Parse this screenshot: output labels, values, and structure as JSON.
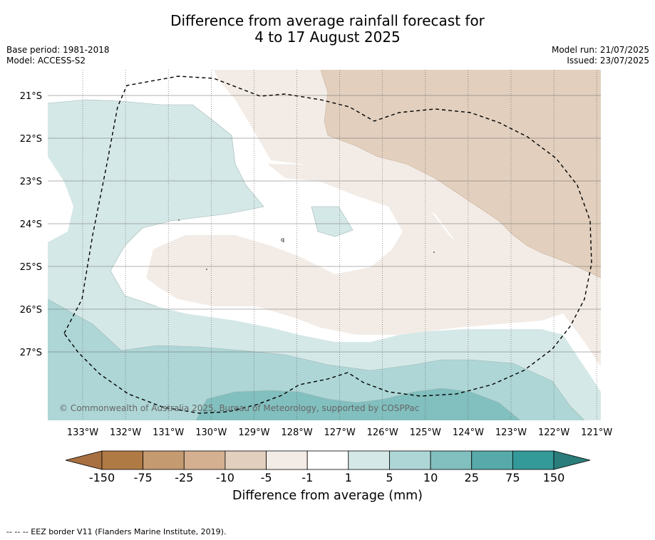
{
  "title": {
    "line1": "Difference from average rainfall forecast for",
    "line2": "4 to 17 August 2025"
  },
  "meta_left": {
    "base_period": "Base period: 1981-2018",
    "model": "Model: ACCESS-S2"
  },
  "meta_right": {
    "model_run": "Model run: 21/07/2025",
    "issued": "Issued: 23/07/2025"
  },
  "map": {
    "lon_range": [
      -133.8,
      -120.9
    ],
    "lat_range": [
      -28.6,
      -20.4
    ],
    "lon_ticks": [
      "133°W",
      "132°W",
      "131°W",
      "130°W",
      "129°W",
      "128°W",
      "127°W",
      "126°W",
      "125°W",
      "124°W",
      "123°W",
      "122°W",
      "121°W"
    ],
    "lat_ticks": [
      "21°S",
      "22°S",
      "23°S",
      "24°S",
      "25°S",
      "26°S",
      "27°S"
    ],
    "copyright": "© Commonwealth of Australia 2025, Bureau of Meteorology, supported by COSPPac",
    "grid": true,
    "boundary": "EEZ border (dashed)"
  },
  "colorbar": {
    "labels": [
      "-150",
      "-75",
      "-25",
      "-10",
      "-5",
      "-1",
      "1",
      "5",
      "10",
      "25",
      "75",
      "150"
    ],
    "colors": [
      "#a87040",
      "#b07a45",
      "#c49a70",
      "#d4b090",
      "#e2cfbd",
      "#f3ece6",
      "#ffffff",
      "#d5e8e8",
      "#aed6d6",
      "#82bfbf",
      "#58aaaa",
      "#339999",
      "#2a7d7a"
    ],
    "title": "Difference from average (mm)"
  },
  "footnote": "--  --  -- EEZ border V11 (Flanders Marine Institute, 2019)."
}
